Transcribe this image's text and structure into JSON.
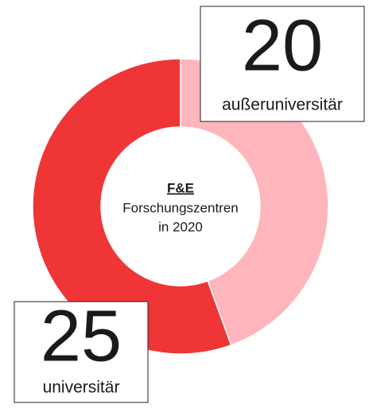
{
  "chart_data": {
    "type": "donut",
    "title": "F&E",
    "subtitle": [
      "Forschungszentren",
      "in 2020"
    ],
    "categories": [
      "außeruniversitär",
      "universitär"
    ],
    "values": [
      20,
      25
    ],
    "colors": [
      "#ffb5bc",
      "#ef3535"
    ]
  }
}
